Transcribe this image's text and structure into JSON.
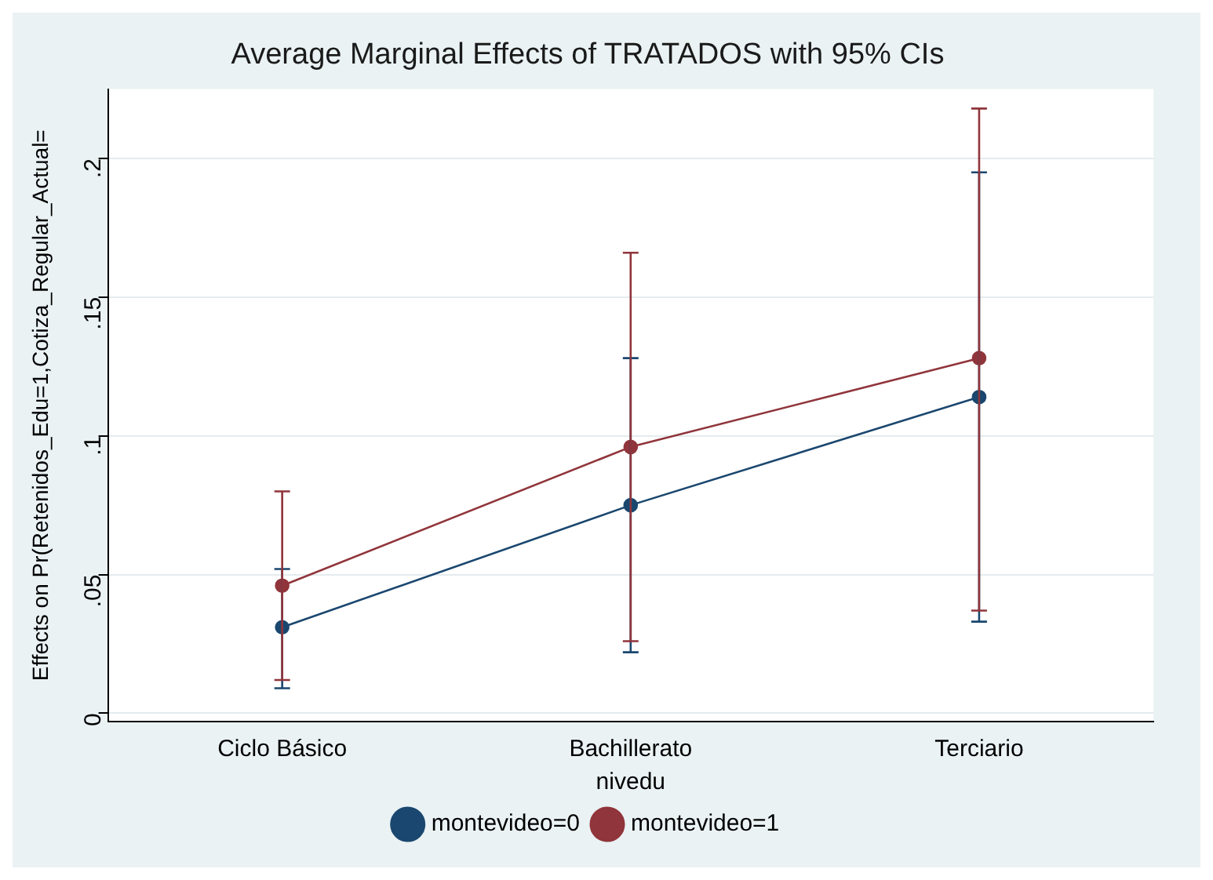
{
  "chart_data": {
    "type": "line",
    "title": "Average Marginal Effects of TRATADOS with 95% CIs",
    "xlabel": "nivedu",
    "ylabel": "Effects on Pr(Retenidos_Edu=1,Cotiza_Regular_Actual=",
    "categories": [
      "Ciclo Básico",
      "Bachillerato",
      "Terciario"
    ],
    "series": [
      {
        "name": "montevideo=0",
        "color": "#1a476f",
        "values": [
          0.031,
          0.075,
          0.114
        ],
        "errors": [
          [
            0.009,
            0.052
          ],
          [
            0.022,
            0.128
          ],
          [
            0.033,
            0.195
          ]
        ]
      },
      {
        "name": "montevideo=1",
        "color": "#90353b",
        "values": [
          0.046,
          0.096,
          0.128
        ],
        "errors": [
          [
            0.012,
            0.08
          ],
          [
            0.026,
            0.166
          ],
          [
            0.037,
            0.218
          ]
        ]
      }
    ],
    "ylim": [
      -0.003,
      0.225
    ],
    "yticks": [
      {
        "value": 0,
        "label": "0"
      },
      {
        "value": 0.05,
        "label": ".05"
      },
      {
        "value": 0.1,
        "label": ".1"
      },
      {
        "value": 0.15,
        "label": ".15"
      },
      {
        "value": 0.2,
        "label": ".2"
      }
    ],
    "grid": "y",
    "legend": "bottom",
    "marker": "circle",
    "line_style": "solid"
  }
}
